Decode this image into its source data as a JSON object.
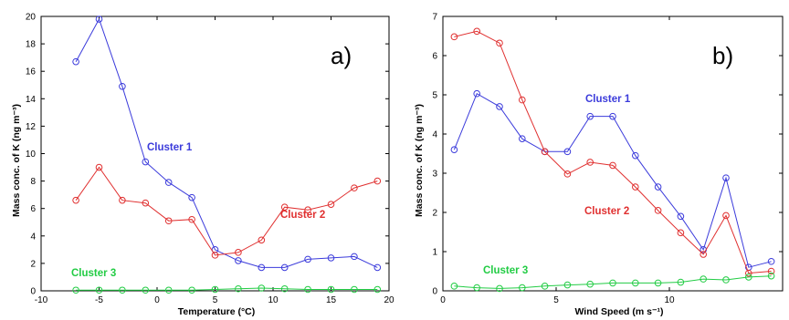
{
  "chart_data": [
    {
      "type": "line",
      "panel_label": "a)",
      "xlabel": "Temperature (°C)",
      "ylabel": "Mass conc. of K (ng m⁻³)",
      "xlim": [
        -10,
        20
      ],
      "ylim": [
        0,
        20
      ],
      "xticks": [
        -10,
        -5,
        0,
        5,
        10,
        15,
        20
      ],
      "yticks": [
        0,
        2,
        4,
        6,
        8,
        10,
        12,
        14,
        16,
        18,
        20
      ],
      "grid": false,
      "x": [
        -7,
        -5,
        -3,
        -1,
        1,
        3,
        5,
        7,
        9,
        11,
        13,
        15,
        17,
        19
      ],
      "series": [
        {
          "name": "Cluster 1",
          "color": "#3b3bdb",
          "values": [
            16.7,
            19.8,
            14.9,
            9.4,
            7.9,
            6.8,
            3.0,
            2.2,
            1.7,
            1.7,
            2.3,
            2.4,
            2.5,
            1.7
          ]
        },
        {
          "name": "Cluster 2",
          "color": "#e03030",
          "values": [
            6.6,
            9.0,
            6.6,
            6.4,
            5.1,
            5.2,
            2.6,
            2.8,
            3.7,
            6.1,
            5.9,
            6.3,
            7.5,
            8.0
          ]
        },
        {
          "name": "Cluster 3",
          "color": "#22cc44",
          "values": [
            0.05,
            0.05,
            0.05,
            0.05,
            0.05,
            0.05,
            0.1,
            0.15,
            0.2,
            0.15,
            0.1,
            0.1,
            0.1,
            0.1
          ]
        }
      ],
      "annotations": [
        "Cluster 1",
        "Cluster 2",
        "Cluster 3"
      ]
    },
    {
      "type": "line",
      "panel_label": "b)",
      "xlabel": "Wind Speed (m s⁻¹)",
      "ylabel": "Mass conc. of K (ng m⁻³)",
      "xlim": [
        0,
        15
      ],
      "ylim": [
        0,
        7
      ],
      "xticks": [
        0,
        5,
        10
      ],
      "yticks": [
        0,
        1,
        2,
        3,
        4,
        5,
        6,
        7
      ],
      "grid": false,
      "x": [
        0.5,
        1.5,
        2.5,
        3.5,
        4.5,
        5.5,
        6.5,
        7.5,
        8.5,
        9.5,
        10.5,
        11.5,
        12.5,
        13.5,
        14.5
      ],
      "series": [
        {
          "name": "Cluster 1",
          "color": "#3b3bdb",
          "values": [
            3.6,
            5.03,
            4.7,
            3.88,
            3.55,
            3.55,
            4.45,
            4.45,
            3.45,
            2.65,
            1.9,
            1.05,
            2.88,
            0.6,
            0.75
          ]
        },
        {
          "name": "Cluster 2",
          "color": "#e03030",
          "values": [
            6.48,
            6.62,
            6.32,
            4.87,
            3.55,
            2.98,
            3.28,
            3.2,
            2.65,
            2.05,
            1.48,
            0.93,
            1.92,
            0.45,
            0.5
          ]
        },
        {
          "name": "Cluster 3",
          "color": "#22cc44",
          "values": [
            0.12,
            0.08,
            0.06,
            0.08,
            0.12,
            0.15,
            0.17,
            0.2,
            0.2,
            0.2,
            0.22,
            0.3,
            0.28,
            0.35,
            0.38
          ]
        }
      ],
      "annotations": [
        "Cluster 1",
        "Cluster 2",
        "Cluster 3"
      ]
    }
  ]
}
